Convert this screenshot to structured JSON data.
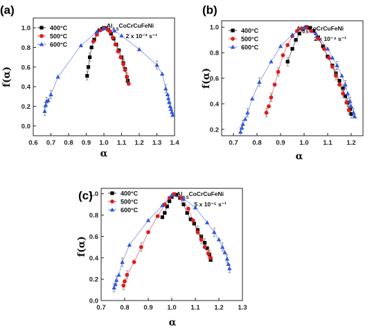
{
  "chart_data": [
    {
      "type": "scatter",
      "panel_label": "(a)",
      "xlabel": "α",
      "ylabel": "f(α)",
      "xlim": [
        0.6,
        1.4
      ],
      "ylim": [
        -0.1,
        1.1
      ],
      "xticks": [
        "0.6",
        "0.7",
        "0.8",
        "0.9",
        "1.0",
        "1.1",
        "1.2",
        "1.3",
        "1.4"
      ],
      "yticks": [
        "0.0",
        "0.2",
        "0.4",
        "0.6",
        "0.8",
        "1.0"
      ],
      "annotation_alloy": "Al0.5CoCrCuFeNi",
      "annotation_rate": "2 x 10⁻³ s⁻¹",
      "legend_position": "top-left",
      "series": [
        {
          "name": "400°C",
          "color": "#000000",
          "marker": "square",
          "points": [
            [
              0.905,
              0.51
            ],
            [
              0.912,
              0.6
            ],
            [
              0.92,
              0.7
            ],
            [
              0.93,
              0.8
            ],
            [
              0.945,
              0.88
            ],
            [
              0.96,
              0.94
            ],
            [
              0.975,
              0.975
            ],
            [
              0.99,
              0.99
            ],
            [
              1.0,
              1.0
            ],
            [
              1.01,
              0.995
            ],
            [
              1.025,
              0.98
            ],
            [
              1.04,
              0.94
            ],
            [
              1.055,
              0.89
            ],
            [
              1.07,
              0.83
            ],
            [
              1.085,
              0.77
            ],
            [
              1.1,
              0.7
            ],
            [
              1.11,
              0.64
            ],
            [
              1.12,
              0.58
            ],
            [
              1.13,
              0.5
            ],
            [
              1.135,
              0.46
            ]
          ]
        },
        {
          "name": "500°C",
          "color": "#e01b1b",
          "marker": "circle",
          "points": [
            [
              0.94,
              0.86
            ],
            [
              0.96,
              0.93
            ],
            [
              0.98,
              0.975
            ],
            [
              1.0,
              0.995
            ],
            [
              1.02,
              0.985
            ],
            [
              1.035,
              0.96
            ],
            [
              1.05,
              0.9
            ],
            [
              1.065,
              0.83
            ],
            [
              1.08,
              0.76
            ],
            [
              1.095,
              0.7
            ],
            [
              1.11,
              0.63
            ],
            [
              1.12,
              0.57
            ],
            [
              1.13,
              0.5
            ],
            [
              1.14,
              0.43
            ]
          ]
        },
        {
          "name": "600°C",
          "color": "#2f57e0",
          "marker": "triangle",
          "points": [
            [
              0.665,
              0.15
            ],
            [
              0.67,
              0.21
            ],
            [
              0.675,
              0.25
            ],
            [
              0.685,
              0.26
            ],
            [
              0.7,
              0.32
            ],
            [
              0.74,
              0.5
            ],
            [
              0.87,
              0.82
            ],
            [
              0.96,
              0.96
            ],
            [
              1.0,
              0.995
            ],
            [
              1.06,
              0.97
            ],
            [
              1.1,
              0.92
            ],
            [
              1.2,
              0.78
            ],
            [
              1.3,
              0.62
            ],
            [
              1.33,
              0.53
            ],
            [
              1.35,
              0.38
            ],
            [
              1.36,
              0.32
            ],
            [
              1.365,
              0.28
            ],
            [
              1.37,
              0.24
            ],
            [
              1.375,
              0.2
            ],
            [
              1.38,
              0.17
            ],
            [
              1.385,
              0.14
            ],
            [
              1.39,
              0.11
            ]
          ]
        }
      ]
    },
    {
      "type": "scatter",
      "panel_label": "(b)",
      "xlabel": "α",
      "ylabel": "f(α)",
      "xlim": [
        0.65,
        1.25
      ],
      "ylim": [
        0.15,
        1.05
      ],
      "xticks": [
        "0.7",
        "0.8",
        "0.9",
        "1.0",
        "1.1",
        "1.2"
      ],
      "yticks": [
        "0.2",
        "0.4",
        "0.6",
        "0.8",
        "1.0"
      ],
      "annotation_alloy": "Al0.5CoCrCuFeNi",
      "annotation_rate": "2 x 10⁻⁴ s⁻¹",
      "legend_position": "top-left",
      "series": [
        {
          "name": "400°C",
          "color": "#000000",
          "marker": "square",
          "points": [
            [
              0.93,
              0.73
            ],
            [
              0.95,
              0.83
            ],
            [
              0.965,
              0.9
            ],
            [
              0.98,
              0.95
            ],
            [
              0.995,
              0.985
            ],
            [
              1.01,
              1.0
            ],
            [
              1.025,
              0.995
            ],
            [
              1.04,
              0.97
            ],
            [
              1.06,
              0.92
            ],
            [
              1.08,
              0.85
            ],
            [
              1.1,
              0.77
            ],
            [
              1.12,
              0.7
            ],
            [
              1.135,
              0.64
            ],
            [
              1.15,
              0.58
            ],
            [
              1.165,
              0.52
            ],
            [
              1.175,
              0.46
            ],
            [
              1.185,
              0.41
            ],
            [
              1.195,
              0.36
            ],
            [
              1.2,
              0.32
            ]
          ]
        },
        {
          "name": "500°C",
          "color": "#e01b1b",
          "marker": "circle",
          "points": [
            [
              0.84,
              0.33
            ],
            [
              0.85,
              0.38
            ],
            [
              0.86,
              0.45
            ],
            [
              0.875,
              0.55
            ],
            [
              0.89,
              0.65
            ],
            [
              0.91,
              0.78
            ],
            [
              0.93,
              0.86
            ],
            [
              0.95,
              0.93
            ],
            [
              0.97,
              0.97
            ],
            [
              0.99,
              0.99
            ],
            [
              1.01,
              0.995
            ],
            [
              1.03,
              0.97
            ],
            [
              1.06,
              0.91
            ],
            [
              1.085,
              0.83
            ],
            [
              1.105,
              0.76
            ],
            [
              1.12,
              0.69
            ],
            [
              1.135,
              0.62
            ],
            [
              1.15,
              0.55
            ],
            [
              1.165,
              0.48
            ],
            [
              1.18,
              0.41
            ],
            [
              1.19,
              0.35
            ]
          ]
        },
        {
          "name": "600°C",
          "color": "#2f57e0",
          "marker": "triangle",
          "points": [
            [
              0.73,
              0.18
            ],
            [
              0.735,
              0.21
            ],
            [
              0.74,
              0.24
            ],
            [
              0.75,
              0.28
            ],
            [
              0.76,
              0.33
            ],
            [
              0.78,
              0.44
            ],
            [
              0.81,
              0.57
            ],
            [
              0.86,
              0.73
            ],
            [
              0.9,
              0.85
            ],
            [
              0.95,
              0.94
            ],
            [
              1.0,
              0.995
            ],
            [
              1.05,
              0.95
            ],
            [
              1.1,
              0.83
            ],
            [
              1.12,
              0.76
            ],
            [
              1.14,
              0.7
            ],
            [
              1.16,
              0.62
            ],
            [
              1.175,
              0.55
            ],
            [
              1.185,
              0.48
            ],
            [
              1.195,
              0.42
            ],
            [
              1.2,
              0.38
            ],
            [
              1.21,
              0.33
            ],
            [
              1.215,
              0.3
            ]
          ]
        }
      ]
    },
    {
      "type": "scatter",
      "panel_label": "(c)",
      "xlabel": "α",
      "ylabel": "f(α)",
      "xlim": [
        0.7,
        1.3
      ],
      "ylim": [
        0.0,
        1.05
      ],
      "xticks": [
        "0.7",
        "0.8",
        "0.9",
        "1.0",
        "1.1",
        "1.2",
        "1.3"
      ],
      "yticks": [
        "0.0",
        "0.2",
        "0.4",
        "0.6",
        "0.8",
        "1.0"
      ],
      "annotation_alloy": "Al0.5CoCrCuFeNi",
      "annotation_rate": "5 x 10⁻⁵ s⁻¹",
      "legend_position": "top-left",
      "series": [
        {
          "name": "400°C",
          "color": "#000000",
          "marker": "square",
          "points": [
            [
              0.96,
              0.78
            ],
            [
              0.97,
              0.82
            ],
            [
              0.98,
              0.88
            ],
            [
              0.99,
              0.93
            ],
            [
              1.0,
              0.97
            ],
            [
              1.01,
              0.995
            ],
            [
              1.02,
              0.99
            ],
            [
              1.035,
              0.96
            ],
            [
              1.05,
              0.9
            ],
            [
              1.065,
              0.82
            ],
            [
              1.08,
              0.76
            ],
            [
              1.095,
              0.72
            ],
            [
              1.11,
              0.66
            ],
            [
              1.125,
              0.6
            ],
            [
              1.14,
              0.54
            ],
            [
              1.15,
              0.49
            ],
            [
              1.16,
              0.43
            ],
            [
              1.165,
              0.38
            ]
          ]
        },
        {
          "name": "500°C",
          "color": "#e01b1b",
          "marker": "circle",
          "points": [
            [
              0.795,
              0.14
            ],
            [
              0.8,
              0.18
            ],
            [
              0.81,
              0.24
            ],
            [
              0.84,
              0.36
            ],
            [
              0.87,
              0.5
            ],
            [
              0.9,
              0.64
            ],
            [
              0.94,
              0.79
            ],
            [
              0.97,
              0.9
            ],
            [
              0.99,
              0.96
            ],
            [
              1.01,
              0.995
            ],
            [
              1.04,
              0.96
            ],
            [
              1.07,
              0.86
            ],
            [
              1.09,
              0.75
            ],
            [
              1.11,
              0.64
            ],
            [
              1.125,
              0.57
            ],
            [
              1.14,
              0.5
            ],
            [
              1.155,
              0.44
            ],
            [
              1.165,
              0.4
            ]
          ]
        },
        {
          "name": "600°C",
          "color": "#2f57e0",
          "marker": "triangle",
          "points": [
            [
              0.755,
              0.12
            ],
            [
              0.76,
              0.15
            ],
            [
              0.765,
              0.19
            ],
            [
              0.775,
              0.24
            ],
            [
              0.79,
              0.36
            ],
            [
              0.82,
              0.52
            ],
            [
              0.9,
              0.75
            ],
            [
              0.96,
              0.89
            ],
            [
              1.0,
              0.985
            ],
            [
              1.05,
              0.95
            ],
            [
              1.1,
              0.87
            ],
            [
              1.15,
              0.73
            ],
            [
              1.18,
              0.64
            ],
            [
              1.2,
              0.57
            ],
            [
              1.215,
              0.5
            ],
            [
              1.225,
              0.45
            ],
            [
              1.235,
              0.39
            ],
            [
              1.24,
              0.34
            ],
            [
              1.245,
              0.3
            ]
          ]
        }
      ]
    }
  ]
}
